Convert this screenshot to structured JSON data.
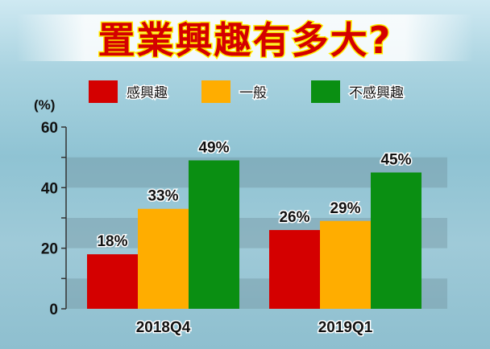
{
  "chart_data": {
    "type": "bar",
    "title": "置業興趣有多大?",
    "ylabel": "(%)",
    "xlabel": "",
    "ylim": [
      0,
      60
    ],
    "yticks": [
      0,
      20,
      40,
      60
    ],
    "categories": [
      "2018Q4",
      "2019Q1"
    ],
    "series": [
      {
        "name": "感興趣",
        "values": [
          18,
          26
        ],
        "labels": [
          "18%",
          "26%"
        ],
        "color": "#d40000"
      },
      {
        "name": "一般",
        "values": [
          33,
          29
        ],
        "labels": [
          "33%",
          "29%"
        ],
        "color": "#ffad00"
      },
      {
        "name": "不感興趣",
        "values": [
          49,
          45
        ],
        "labels": [
          "49%",
          "45%"
        ],
        "color": "#0a8f12"
      }
    ],
    "legend": "top",
    "grid": false
  }
}
